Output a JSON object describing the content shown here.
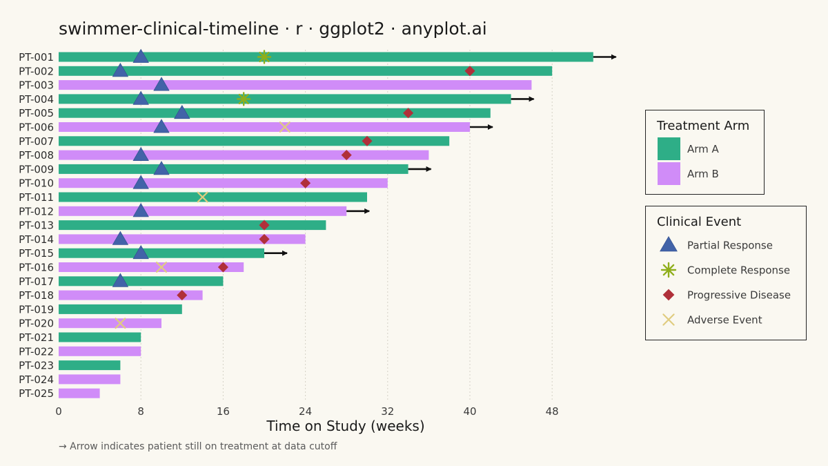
{
  "chart_data": {
    "type": "bar",
    "subtype": "swimmer",
    "title": "swimmer-clinical-timeline · r · ggplot2 · anyplot.ai",
    "xlabel": "Time on Study (weeks)",
    "ylabel": "",
    "xlim": [
      0,
      54
    ],
    "xticks": [
      0,
      8,
      16,
      24,
      32,
      40,
      48
    ],
    "grid": "vertical-dotted",
    "caption": "→ Arrow indicates patient still on treatment at data cutoff",
    "arms": [
      {
        "name": "Arm A",
        "color": "#2EAE87"
      },
      {
        "name": "Arm B",
        "color": "#D08CF8"
      }
    ],
    "event_types": [
      {
        "name": "Partial Response",
        "shape": "triangle",
        "color": "#4263A8"
      },
      {
        "name": "Complete Response",
        "shape": "asterisk",
        "color": "#8FAE1B"
      },
      {
        "name": "Progressive Disease",
        "shape": "diamond",
        "color": "#B0303A"
      },
      {
        "name": "Adverse Event",
        "shape": "cross",
        "color": "#E0CC80"
      }
    ],
    "legend": {
      "position": "right",
      "arm_title": "Treatment Arm",
      "event_title": "Clinical Event"
    },
    "patients": [
      {
        "id": "PT-001",
        "arm": "Arm A",
        "duration": 52,
        "ongoing": true,
        "events": [
          {
            "type": "Partial Response",
            "week": 8
          },
          {
            "type": "Complete Response",
            "week": 20
          }
        ]
      },
      {
        "id": "PT-002",
        "arm": "Arm A",
        "duration": 48,
        "ongoing": false,
        "events": [
          {
            "type": "Partial Response",
            "week": 6
          },
          {
            "type": "Progressive Disease",
            "week": 40
          }
        ]
      },
      {
        "id": "PT-003",
        "arm": "Arm B",
        "duration": 46,
        "ongoing": false,
        "events": [
          {
            "type": "Partial Response",
            "week": 10
          }
        ]
      },
      {
        "id": "PT-004",
        "arm": "Arm A",
        "duration": 44,
        "ongoing": true,
        "events": [
          {
            "type": "Partial Response",
            "week": 8
          },
          {
            "type": "Complete Response",
            "week": 18
          }
        ]
      },
      {
        "id": "PT-005",
        "arm": "Arm A",
        "duration": 42,
        "ongoing": false,
        "events": [
          {
            "type": "Partial Response",
            "week": 12
          },
          {
            "type": "Progressive Disease",
            "week": 34
          }
        ]
      },
      {
        "id": "PT-006",
        "arm": "Arm B",
        "duration": 40,
        "ongoing": true,
        "events": [
          {
            "type": "Partial Response",
            "week": 10
          },
          {
            "type": "Adverse Event",
            "week": 22
          }
        ]
      },
      {
        "id": "PT-007",
        "arm": "Arm A",
        "duration": 38,
        "ongoing": false,
        "events": [
          {
            "type": "Progressive Disease",
            "week": 30
          }
        ]
      },
      {
        "id": "PT-008",
        "arm": "Arm B",
        "duration": 36,
        "ongoing": false,
        "events": [
          {
            "type": "Partial Response",
            "week": 8
          },
          {
            "type": "Progressive Disease",
            "week": 28
          }
        ]
      },
      {
        "id": "PT-009",
        "arm": "Arm A",
        "duration": 34,
        "ongoing": true,
        "events": [
          {
            "type": "Partial Response",
            "week": 10
          }
        ]
      },
      {
        "id": "PT-010",
        "arm": "Arm B",
        "duration": 32,
        "ongoing": false,
        "events": [
          {
            "type": "Partial Response",
            "week": 8
          },
          {
            "type": "Progressive Disease",
            "week": 24
          }
        ]
      },
      {
        "id": "PT-011",
        "arm": "Arm A",
        "duration": 30,
        "ongoing": false,
        "events": [
          {
            "type": "Adverse Event",
            "week": 14
          }
        ]
      },
      {
        "id": "PT-012",
        "arm": "Arm B",
        "duration": 28,
        "ongoing": true,
        "events": [
          {
            "type": "Partial Response",
            "week": 8
          }
        ]
      },
      {
        "id": "PT-013",
        "arm": "Arm A",
        "duration": 26,
        "ongoing": false,
        "events": [
          {
            "type": "Progressive Disease",
            "week": 20
          }
        ]
      },
      {
        "id": "PT-014",
        "arm": "Arm B",
        "duration": 24,
        "ongoing": false,
        "events": [
          {
            "type": "Partial Response",
            "week": 6
          },
          {
            "type": "Progressive Disease",
            "week": 20
          }
        ]
      },
      {
        "id": "PT-015",
        "arm": "Arm A",
        "duration": 20,
        "ongoing": true,
        "events": [
          {
            "type": "Partial Response",
            "week": 8
          }
        ]
      },
      {
        "id": "PT-016",
        "arm": "Arm B",
        "duration": 18,
        "ongoing": false,
        "events": [
          {
            "type": "Adverse Event",
            "week": 10
          },
          {
            "type": "Progressive Disease",
            "week": 16
          }
        ]
      },
      {
        "id": "PT-017",
        "arm": "Arm A",
        "duration": 16,
        "ongoing": false,
        "events": [
          {
            "type": "Partial Response",
            "week": 6
          }
        ]
      },
      {
        "id": "PT-018",
        "arm": "Arm B",
        "duration": 14,
        "ongoing": false,
        "events": [
          {
            "type": "Progressive Disease",
            "week": 12
          }
        ]
      },
      {
        "id": "PT-019",
        "arm": "Arm A",
        "duration": 12,
        "ongoing": false,
        "events": []
      },
      {
        "id": "PT-020",
        "arm": "Arm B",
        "duration": 10,
        "ongoing": false,
        "events": [
          {
            "type": "Adverse Event",
            "week": 6
          }
        ]
      },
      {
        "id": "PT-021",
        "arm": "Arm A",
        "duration": 8,
        "ongoing": false,
        "events": []
      },
      {
        "id": "PT-022",
        "arm": "Arm B",
        "duration": 8,
        "ongoing": false,
        "events": []
      },
      {
        "id": "PT-023",
        "arm": "Arm A",
        "duration": 6,
        "ongoing": false,
        "events": []
      },
      {
        "id": "PT-024",
        "arm": "Arm B",
        "duration": 6,
        "ongoing": false,
        "events": []
      },
      {
        "id": "PT-025",
        "arm": "Arm B",
        "duration": 4,
        "ongoing": false,
        "events": []
      }
    ]
  }
}
